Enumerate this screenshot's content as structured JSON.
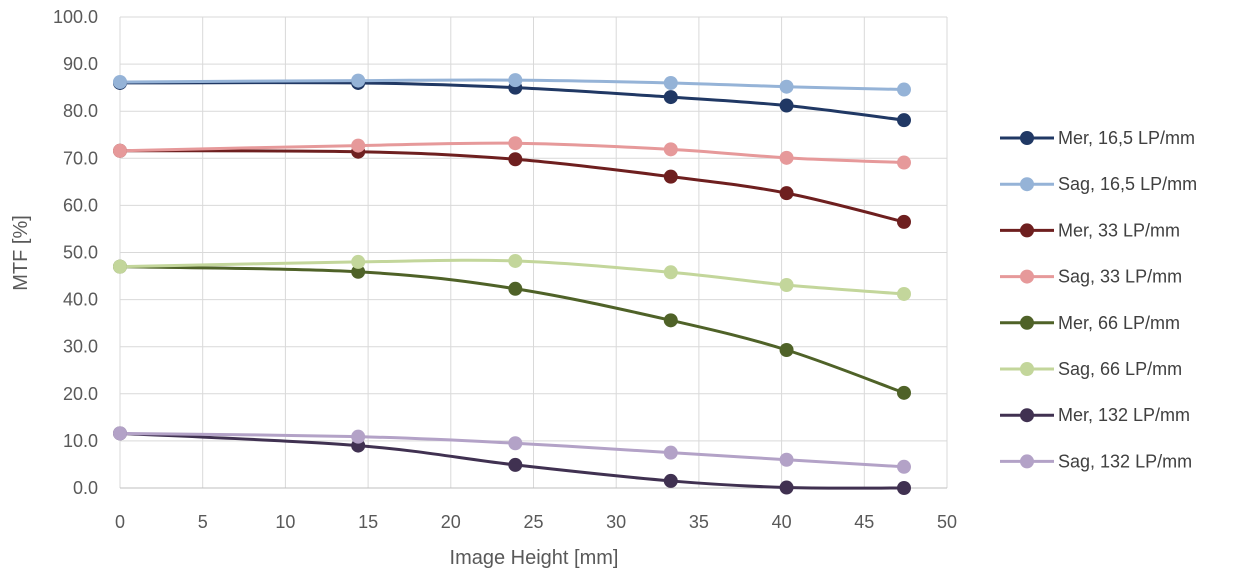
{
  "chart_data": {
    "type": "line",
    "xlabel": "Image Height [mm]",
    "ylabel": "MTF [%]",
    "xlim": [
      0,
      50
    ],
    "ylim": [
      0,
      100
    ],
    "x_ticks": [
      "0",
      "5",
      "10",
      "15",
      "20",
      "25",
      "30",
      "35",
      "40",
      "45",
      "50"
    ],
    "y_ticks": [
      "0.0",
      "10.0",
      "20.0",
      "30.0",
      "40.0",
      "50.0",
      "60.0",
      "70.0",
      "80.0",
      "90.0",
      "100.0"
    ],
    "grid": true,
    "legend_position": "right",
    "x": [
      0,
      14.4,
      23.9,
      33.3,
      40.3,
      47.4
    ],
    "series": [
      {
        "name": "Mer, 16,5 LP/mm",
        "color": "#203864",
        "values": [
          86.0,
          86.0,
          85.0,
          83.0,
          81.2,
          78.1
        ]
      },
      {
        "name": "Sag, 16,5 LP/mm",
        "color": "#95b3d7",
        "values": [
          86.2,
          86.5,
          86.6,
          86.0,
          85.2,
          84.6
        ]
      },
      {
        "name": "Mer, 33 LP/mm",
        "color": "#6e1f1f",
        "values": [
          71.6,
          71.4,
          69.8,
          66.1,
          62.6,
          56.5
        ]
      },
      {
        "name": "Sag, 33 LP/mm",
        "color": "#e6999a",
        "values": [
          71.6,
          72.7,
          73.2,
          71.9,
          70.1,
          69.1
        ]
      },
      {
        "name": "Mer, 66 LP/mm",
        "color": "#4f6228",
        "values": [
          47.0,
          45.9,
          42.3,
          35.6,
          29.3,
          20.2
        ]
      },
      {
        "name": "Sag, 66 LP/mm",
        "color": "#c3d69b",
        "values": [
          47.0,
          48.0,
          48.2,
          45.8,
          43.1,
          41.2
        ]
      },
      {
        "name": "Mer, 132 LP/mm",
        "color": "#403151",
        "values": [
          11.6,
          9.0,
          4.9,
          1.5,
          0.1,
          0.0
        ]
      },
      {
        "name": "Sag, 132 LP/mm",
        "color": "#b3a2c7",
        "values": [
          11.6,
          10.9,
          9.5,
          7.5,
          6.0,
          4.5
        ]
      }
    ]
  }
}
